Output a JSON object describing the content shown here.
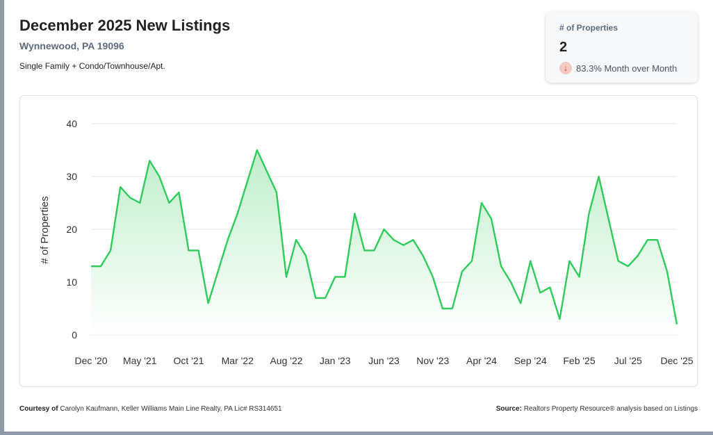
{
  "header": {
    "title": "December 2025 New Listings",
    "location": "Wynnewood, PA 19096",
    "subtitle": "Single Family + Condo/Townhouse/Apt."
  },
  "kpi": {
    "label": "# of Properties",
    "value": "2",
    "change": "83.3% Month over Month",
    "icon": "arrow-down-icon"
  },
  "colors": {
    "line": "#2ecc5a",
    "fill_top": "#b8ecc4",
    "fill_bottom": "#ffffff",
    "grid": "#e6e6e6",
    "down_badge": "#f6c9c2",
    "down_arrow": "#d2442f"
  },
  "chart_data": {
    "type": "area",
    "ylabel": "# of Properties",
    "ylim": [
      0,
      40
    ],
    "yticks": [
      0,
      10,
      20,
      30,
      40
    ],
    "grid": true,
    "legend": "none",
    "x_tick_labels": [
      "Dec '20",
      "May '21",
      "Oct '21",
      "Mar '22",
      "Aug '22",
      "Jan '23",
      "Jun '23",
      "Nov '23",
      "Apr '24",
      "Sep '24",
      "Feb '25",
      "Jul '25",
      "Dec '25"
    ],
    "x": [
      "Dec '20",
      "Jan '21",
      "Feb '21",
      "Mar '21",
      "Apr '21",
      "May '21",
      "Jun '21",
      "Jul '21",
      "Aug '21",
      "Sep '21",
      "Oct '21",
      "Nov '21",
      "Dec '21",
      "Jan '22",
      "Feb '22",
      "Mar '22",
      "Apr '22",
      "May '22",
      "Jun '22",
      "Jul '22",
      "Aug '22",
      "Sep '22",
      "Oct '22",
      "Nov '22",
      "Dec '22",
      "Jan '23",
      "Feb '23",
      "Mar '23",
      "Apr '23",
      "May '23",
      "Jun '23",
      "Jul '23",
      "Aug '23",
      "Sep '23",
      "Oct '23",
      "Nov '23",
      "Dec '23",
      "Jan '24",
      "Feb '24",
      "Mar '24",
      "Apr '24",
      "May '24",
      "Jun '24",
      "Jul '24",
      "Aug '24",
      "Sep '24",
      "Oct '24",
      "Nov '24",
      "Dec '24",
      "Jan '25",
      "Feb '25",
      "Mar '25",
      "Apr '25",
      "May '25",
      "Jun '25",
      "Jul '25",
      "Aug '25",
      "Sep '25",
      "Oct '25",
      "Nov '25",
      "Dec '25"
    ],
    "series": [
      {
        "values": [
          13,
          13,
          16,
          28,
          26,
          25,
          33,
          30,
          25,
          27,
          16,
          16,
          6,
          12,
          18,
          23,
          29,
          35,
          31,
          27,
          11,
          18,
          15,
          7,
          7,
          11,
          11,
          23,
          16,
          16,
          20,
          18,
          17,
          18,
          15,
          11,
          5,
          5,
          12,
          14,
          25,
          22,
          13,
          10,
          6,
          14,
          8,
          9,
          3,
          14,
          11,
          23,
          30,
          22,
          14,
          13,
          15,
          18,
          18,
          12,
          2
        ]
      }
    ]
  },
  "footer": {
    "courtesy_label": "Courtesy of",
    "courtesy_text": " Carolyn Kaufmann, Keller Williams Main Line Realty, PA Lic# RS314651",
    "source_label": "Source:",
    "source_text": " Realtors Property Resource® analysis based on Listings"
  }
}
